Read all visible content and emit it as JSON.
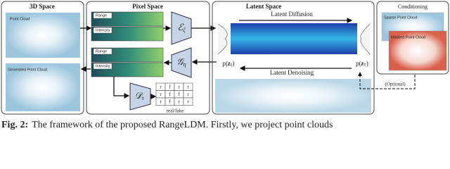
{
  "figure": {
    "space_3d": {
      "title": "3D Space",
      "input_label": "Point Cloud",
      "output_label": "Generated Point Cloud"
    },
    "pixel_space": {
      "title": "Pixel Space",
      "top_labels": [
        "Range",
        "Intensity"
      ],
      "bottom_labels": [
        "Range",
        "Intensity"
      ],
      "encoder": {
        "symbol": "ℰ",
        "sub": "ζ"
      },
      "decoder": {
        "symbol": "𝒢",
        "sub": "η"
      },
      "discriminator": {
        "symbol": "𝒟",
        "sub": "τ"
      },
      "grid": [
        [
          "r",
          "f",
          "r",
          "r"
        ],
        [
          "r",
          "f",
          "f",
          "r"
        ],
        [
          "r",
          "f",
          "r",
          "r"
        ]
      ],
      "grid_caption": "real/fake"
    },
    "latent_space": {
      "title": "Latent Space",
      "forward": "Latent Diffusion",
      "backward": "Latent Denoising",
      "start": {
        "pre": "p(",
        "var": "z",
        "sub": "0",
        "post": ")"
      },
      "end": {
        "pre": "p(",
        "var": "z",
        "sub": "T",
        "post": ")"
      },
      "optional": "(Optional)"
    },
    "conditioning": {
      "title": "Conditioning",
      "sparse": "Sparse Point Cloud",
      "masked": "Masked Point Cloud"
    },
    "caption": {
      "label": "Fig. 2:",
      "text": "The framework of the proposed RangeLDM. Firstly, we project point clouds"
    }
  }
}
